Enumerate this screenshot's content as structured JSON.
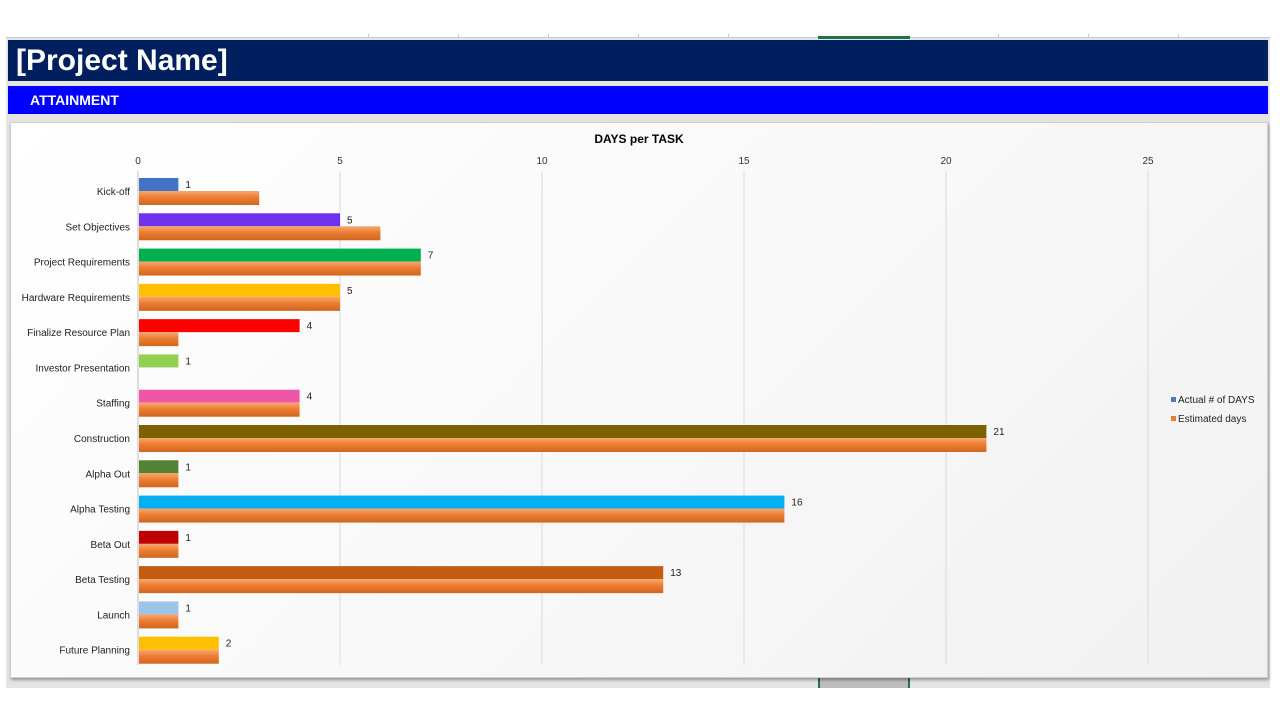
{
  "header": {
    "title": "[Project Name]",
    "section": "ATTAINMENT"
  },
  "chart_data": {
    "type": "bar",
    "orientation": "horizontal",
    "title": "DAYS per TASK",
    "xlabel": "",
    "ylabel": "",
    "xlim": [
      0,
      25
    ],
    "xticks": [
      0,
      5,
      10,
      15,
      20,
      25
    ],
    "grid": true,
    "legend_position": "right",
    "categories": [
      "Kick-off",
      "Set Objectives",
      "Project Requirements",
      "Hardware Requirements",
      "Finalize Resource Plan",
      "Investor Presentation",
      "Staffing",
      "Construction",
      "Alpha Out",
      "Alpha Testing",
      "Beta Out",
      "Beta Testing",
      "Launch",
      "Future Planning"
    ],
    "series": [
      {
        "name": "Actual # of DAYS",
        "values": [
          1,
          5,
          7,
          5,
          4,
          1,
          4,
          21,
          1,
          16,
          1,
          13,
          1,
          2
        ],
        "colors": [
          "#4472c4",
          "#7030f0",
          "#00b050",
          "#ffc000",
          "#ff0000",
          "#92d050",
          "#f056a8",
          "#7f6000",
          "#548235",
          "#00b0f0",
          "#c00000",
          "#c55a11",
          "#9dc3e6",
          "#ffc000"
        ],
        "legend_color": "#4a7cc4"
      },
      {
        "name": "Estimated days",
        "values": [
          3,
          6,
          7,
          5,
          1,
          0,
          4,
          21,
          1,
          16,
          1,
          13,
          1,
          2
        ],
        "color": "#ed7d31"
      }
    ]
  }
}
